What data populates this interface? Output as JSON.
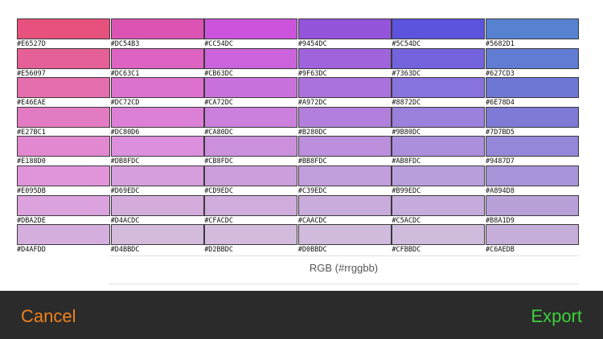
{
  "palette": {
    "rows": [
      [
        "#E6527D",
        "#DC54B3",
        "#CC54DC",
        "#9454DC",
        "#5C54DC",
        "#5682D1"
      ],
      [
        "#E56097",
        "#DC63C1",
        "#CB63DC",
        "#9F63DC",
        "#7363DC",
        "#627CD3"
      ],
      [
        "#E46EAE",
        "#DC72CD",
        "#CA72DC",
        "#A972DC",
        "#8872DC",
        "#6E78D4"
      ],
      [
        "#E27BC1",
        "#DC80D6",
        "#CA80DC",
        "#B280DC",
        "#9B80DC",
        "#7D7BD5"
      ],
      [
        "#E188D0",
        "#DB8FDC",
        "#CB8FDC",
        "#BB8FDC",
        "#AB8FDC",
        "#9487D7"
      ],
      [
        "#E095DB",
        "#D69EDC",
        "#CD9EDC",
        "#C39EDC",
        "#B99EDC",
        "#A894D8"
      ],
      [
        "#DBA2DE",
        "#D4ACDC",
        "#CFACDC",
        "#CAACDC",
        "#C5ACDC",
        "#B8A1D9"
      ],
      [
        "#D4AFDD",
        "#D4BBDC",
        "#D2BBDC",
        "#D0BBDC",
        "#CFBBDC",
        "#C6AEDB"
      ]
    ]
  },
  "format_label": "RGB (#rrggbb)",
  "toolbar": {
    "cancel_label": "Cancel",
    "export_label": "Export",
    "cancel_color": "#F0831E",
    "export_color": "#3BD13B"
  }
}
